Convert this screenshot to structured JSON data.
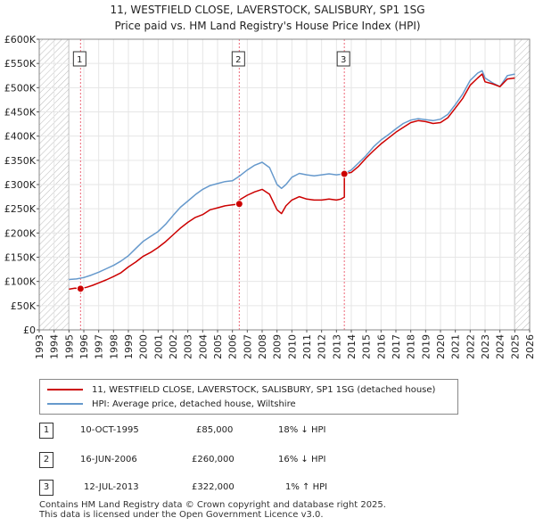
{
  "title_line1": "11, WESTFIELD CLOSE, LAVERSTOCK, SALISBURY, SP1 1SG",
  "title_line2": "Price paid vs. HM Land Registry's House Price Index (HPI)",
  "legend": [
    {
      "label": "11, WESTFIELD CLOSE, LAVERSTOCK, SALISBURY, SP1 1SG (detached house)",
      "color": "#cc0000"
    },
    {
      "label": "HPI: Average price, detached house, Wiltshire",
      "color": "#6699cc"
    }
  ],
  "transactions": [
    {
      "n": "1",
      "date": "10-OCT-1995",
      "price": "£85,000",
      "hpi": "18% ↓ HPI"
    },
    {
      "n": "2",
      "date": "16-JUN-2006",
      "price": "£260,000",
      "hpi": "16% ↓ HPI"
    },
    {
      "n": "3",
      "date": "12-JUL-2013",
      "price": "£322,000",
      "hpi": "1% ↑ HPI"
    }
  ],
  "footer": [
    "Contains HM Land Registry data © Crown copyright and database right 2025.",
    "This data is licensed under the Open Government Licence v3.0."
  ],
  "chart_data": {
    "type": "line",
    "xlim": [
      1993,
      2026
    ],
    "ylim": [
      0,
      600000
    ],
    "x_ticks": [
      1993,
      1994,
      1995,
      1996,
      1997,
      1998,
      1999,
      2000,
      2001,
      2002,
      2003,
      2004,
      2005,
      2006,
      2007,
      2008,
      2009,
      2010,
      2011,
      2012,
      2013,
      2014,
      2015,
      2016,
      2017,
      2018,
      2019,
      2020,
      2021,
      2022,
      2023,
      2024,
      2025,
      2026
    ],
    "y_ticks": [
      0,
      50000,
      100000,
      150000,
      200000,
      250000,
      300000,
      350000,
      400000,
      450000,
      500000,
      550000,
      600000
    ],
    "y_tick_labels": [
      "£0",
      "£50K",
      "£100K",
      "£150K",
      "£200K",
      "£250K",
      "£300K",
      "£350K",
      "£400K",
      "£450K",
      "£500K",
      "£550K",
      "£600K"
    ],
    "hatched_ranges": [
      [
        1993,
        1995.0
      ],
      [
        2025.0,
        2026
      ]
    ],
    "series": [
      {
        "name": "11, WESTFIELD CLOSE, LAVERSTOCK, SALISBURY, SP1 1SG (detached house)",
        "color": "#cc0000",
        "x": [
          1995.0,
          1995.4,
          1995.78,
          1996.2,
          1996.6,
          1997.0,
          1997.5,
          1998.0,
          1998.5,
          1999.0,
          1999.5,
          2000.0,
          2000.5,
          2001.0,
          2001.5,
          2002.0,
          2002.5,
          2003.0,
          2003.5,
          2004.0,
          2004.5,
          2005.0,
          2005.5,
          2006.0,
          2006.46,
          2006.46,
          2007.0,
          2007.5,
          2008.0,
          2008.5,
          2009.0,
          2009.3,
          2009.6,
          2010.0,
          2010.5,
          2011.0,
          2011.5,
          2012.0,
          2012.5,
          2013.0,
          2013.3,
          2013.53,
          2013.53,
          2014.0,
          2014.5,
          2015.0,
          2015.5,
          2016.0,
          2016.5,
          2017.0,
          2017.5,
          2018.0,
          2018.5,
          2019.0,
          2019.5,
          2020.0,
          2020.5,
          2021.0,
          2021.5,
          2022.0,
          2022.5,
          2022.8,
          2023.0,
          2023.5,
          2024.0,
          2024.5,
          2025.0
        ],
        "y": [
          84000,
          86000,
          85000,
          88000,
          92000,
          97000,
          103000,
          110000,
          118000,
          130000,
          140000,
          152000,
          160000,
          170000,
          182000,
          196000,
          210000,
          222000,
          232000,
          238000,
          248000,
          252000,
          256000,
          258000,
          260000,
          268000,
          278000,
          285000,
          290000,
          280000,
          248000,
          240000,
          256000,
          268000,
          275000,
          270000,
          268000,
          268000,
          270000,
          268000,
          270000,
          274000,
          322000,
          325000,
          338000,
          355000,
          370000,
          384000,
          396000,
          408000,
          418000,
          428000,
          432000,
          430000,
          426000,
          428000,
          438000,
          458000,
          478000,
          505000,
          520000,
          528000,
          512000,
          508000,
          502000,
          518000,
          520000
        ]
      },
      {
        "name": "HPI: Average price, detached house, Wiltshire",
        "color": "#6699cc",
        "x": [
          1995.0,
          1995.5,
          1996.0,
          1996.5,
          1997.0,
          1997.5,
          1998.0,
          1998.5,
          1999.0,
          1999.5,
          2000.0,
          2000.5,
          2001.0,
          2001.5,
          2002.0,
          2002.5,
          2003.0,
          2003.5,
          2004.0,
          2004.5,
          2005.0,
          2005.5,
          2006.0,
          2006.5,
          2007.0,
          2007.5,
          2008.0,
          2008.5,
          2009.0,
          2009.3,
          2009.6,
          2010.0,
          2010.5,
          2011.0,
          2011.5,
          2012.0,
          2012.5,
          2013.0,
          2013.5,
          2014.0,
          2014.5,
          2015.0,
          2015.5,
          2016.0,
          2016.5,
          2017.0,
          2017.5,
          2018.0,
          2018.5,
          2019.0,
          2019.5,
          2020.0,
          2020.5,
          2021.0,
          2021.5,
          2022.0,
          2022.5,
          2022.8,
          2023.0,
          2023.5,
          2024.0,
          2024.5,
          2025.0
        ],
        "y": [
          104000,
          105000,
          108000,
          113000,
          119000,
          126000,
          133000,
          142000,
          153000,
          168000,
          183000,
          193000,
          203000,
          218000,
          236000,
          253000,
          266000,
          279000,
          290000,
          298000,
          302000,
          306000,
          308000,
          318000,
          330000,
          340000,
          346000,
          335000,
          300000,
          292000,
          300000,
          315000,
          323000,
          320000,
          318000,
          320000,
          322000,
          320000,
          322000,
          330000,
          345000,
          360000,
          378000,
          392000,
          403000,
          415000,
          426000,
          433000,
          436000,
          434000,
          432000,
          435000,
          445000,
          465000,
          487000,
          515000,
          530000,
          535000,
          520000,
          510000,
          502000,
          525000,
          528000
        ]
      }
    ],
    "markers": [
      {
        "label": "1",
        "x": 1995.78,
        "y": 85000
      },
      {
        "label": "2",
        "x": 2006.46,
        "y": 260000
      },
      {
        "label": "3",
        "x": 2013.53,
        "y": 322000
      }
    ]
  }
}
